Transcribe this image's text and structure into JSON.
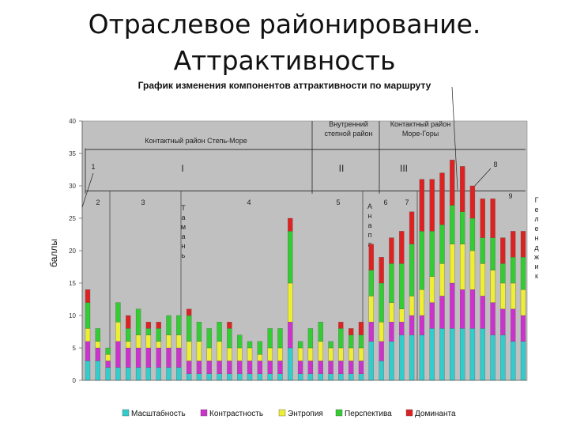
{
  "slide": {
    "title_line1": "Отраслевое районирование.",
    "title_line2": "Аттрактивность"
  },
  "chart_data": {
    "type": "bar",
    "stacked": true,
    "title": "График изменения компонентов аттрактивности по маршруту",
    "ylabel": "баллы",
    "ylim": [
      0,
      40
    ],
    "yticks": [
      0,
      5,
      10,
      15,
      20,
      25,
      30,
      35,
      40
    ],
    "background": "#c0c0c0",
    "legend_position": "bottom",
    "series": [
      {
        "name": "Масштабность",
        "color": "#33cccc",
        "values": [
          3,
          3,
          2,
          2,
          2,
          2,
          2,
          2,
          2,
          2,
          1,
          1,
          1,
          1,
          1,
          1,
          1,
          1,
          1,
          1,
          5,
          1,
          1,
          1,
          1,
          1,
          1,
          1,
          6,
          3,
          6,
          7,
          7,
          7,
          8,
          8,
          8,
          8,
          8,
          8,
          7,
          7,
          6,
          6
        ]
      },
      {
        "name": "Контрастность",
        "color": "#cc33cc",
        "values": [
          3,
          2,
          1,
          4,
          3,
          3,
          3,
          3,
          3,
          3,
          2,
          2,
          2,
          2,
          2,
          2,
          2,
          2,
          2,
          2,
          4,
          2,
          2,
          2,
          2,
          2,
          2,
          2,
          3,
          3,
          3,
          2,
          3,
          3,
          4,
          5,
          7,
          6,
          6,
          5,
          5,
          4,
          5,
          4
        ]
      },
      {
        "name": "Энтропия",
        "color": "#eeee33",
        "values": [
          2,
          1,
          1,
          3,
          1,
          2,
          2,
          1,
          2,
          2,
          3,
          3,
          2,
          3,
          2,
          2,
          2,
          1,
          2,
          2,
          6,
          2,
          2,
          3,
          2,
          2,
          2,
          2,
          4,
          3,
          3,
          2,
          3,
          4,
          4,
          5,
          6,
          7,
          6,
          5,
          5,
          4,
          4,
          4
        ]
      },
      {
        "name": "Перспектива",
        "color": "#33cc33",
        "values": [
          4,
          2,
          1,
          3,
          2,
          4,
          1,
          2,
          3,
          3,
          4,
          3,
          3,
          3,
          3,
          2,
          1,
          2,
          3,
          3,
          8,
          1,
          3,
          3,
          1,
          3,
          2,
          2,
          4,
          6,
          6,
          7,
          8,
          9,
          7,
          6,
          6,
          5,
          5,
          4,
          5,
          3,
          4,
          5
        ]
      },
      {
        "name": "Доминанта",
        "color": "#dd2222",
        "values": [
          2,
          0,
          0,
          0,
          2,
          0,
          1,
          1,
          0,
          0,
          1,
          0,
          0,
          0,
          1,
          0,
          0,
          0,
          0,
          0,
          2,
          0,
          0,
          0,
          0,
          1,
          1,
          2,
          4,
          4,
          4,
          5,
          5,
          8,
          8,
          8,
          7,
          7,
          5,
          6,
          6,
          4,
          4,
          4
        ]
      }
    ],
    "annotations": {
      "region_steppe_sea": "Контактный район Степь-Море",
      "region_inner_steppe": "Внутренний степной район",
      "region_sea_mountains": "Контактный район Море-Горы",
      "roman_1": "I",
      "roman_2": "II",
      "roman_3": "III",
      "markers": [
        "1",
        "2",
        "3",
        "4",
        "5",
        "6",
        "7",
        "8",
        "9"
      ],
      "vertical_taman": "Тамань",
      "vertical_anapa": "Анапа",
      "vertical_gelendzhik": "Геленджик"
    }
  }
}
